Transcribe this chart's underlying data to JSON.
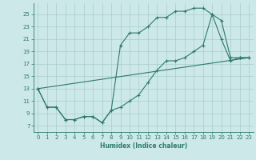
{
  "xlabel": "Humidex (Indice chaleur)",
  "bg_color": "#cce8e8",
  "grid_color": "#aacccc",
  "line_color": "#2d7a6a",
  "xlim": [
    -0.5,
    23.5
  ],
  "ylim": [
    6.0,
    26.8
  ],
  "yticks": [
    7,
    9,
    11,
    13,
    15,
    17,
    19,
    21,
    23,
    25
  ],
  "xticks": [
    0,
    1,
    2,
    3,
    4,
    5,
    6,
    7,
    8,
    9,
    10,
    11,
    12,
    13,
    14,
    15,
    16,
    17,
    18,
    19,
    20,
    21,
    22,
    23
  ],
  "line1_x": [
    0,
    1,
    2,
    3,
    4,
    5,
    6,
    7,
    8,
    9,
    10,
    11,
    12,
    13,
    14,
    15,
    16,
    17,
    18,
    19,
    20,
    21,
    22,
    23
  ],
  "line1_y": [
    13,
    10,
    10,
    8,
    8,
    8.5,
    8.5,
    7.5,
    9.5,
    20,
    22,
    22,
    23,
    24.5,
    24.5,
    25.5,
    25.5,
    26,
    26,
    25,
    21,
    17.5,
    18,
    18
  ],
  "line2_x": [
    0,
    1,
    2,
    3,
    4,
    5,
    6,
    7,
    8,
    9,
    10,
    11,
    12,
    13,
    14,
    15,
    16,
    17,
    18,
    19,
    20,
    21,
    22,
    23
  ],
  "line2_y": [
    13,
    10,
    10,
    8,
    8,
    8.5,
    8.5,
    7.5,
    9.5,
    10,
    11,
    12,
    14,
    16,
    17.5,
    17.5,
    18,
    19,
    20,
    25,
    24,
    18,
    18,
    18
  ],
  "line3_x": [
    0,
    23
  ],
  "line3_y": [
    13,
    18
  ]
}
